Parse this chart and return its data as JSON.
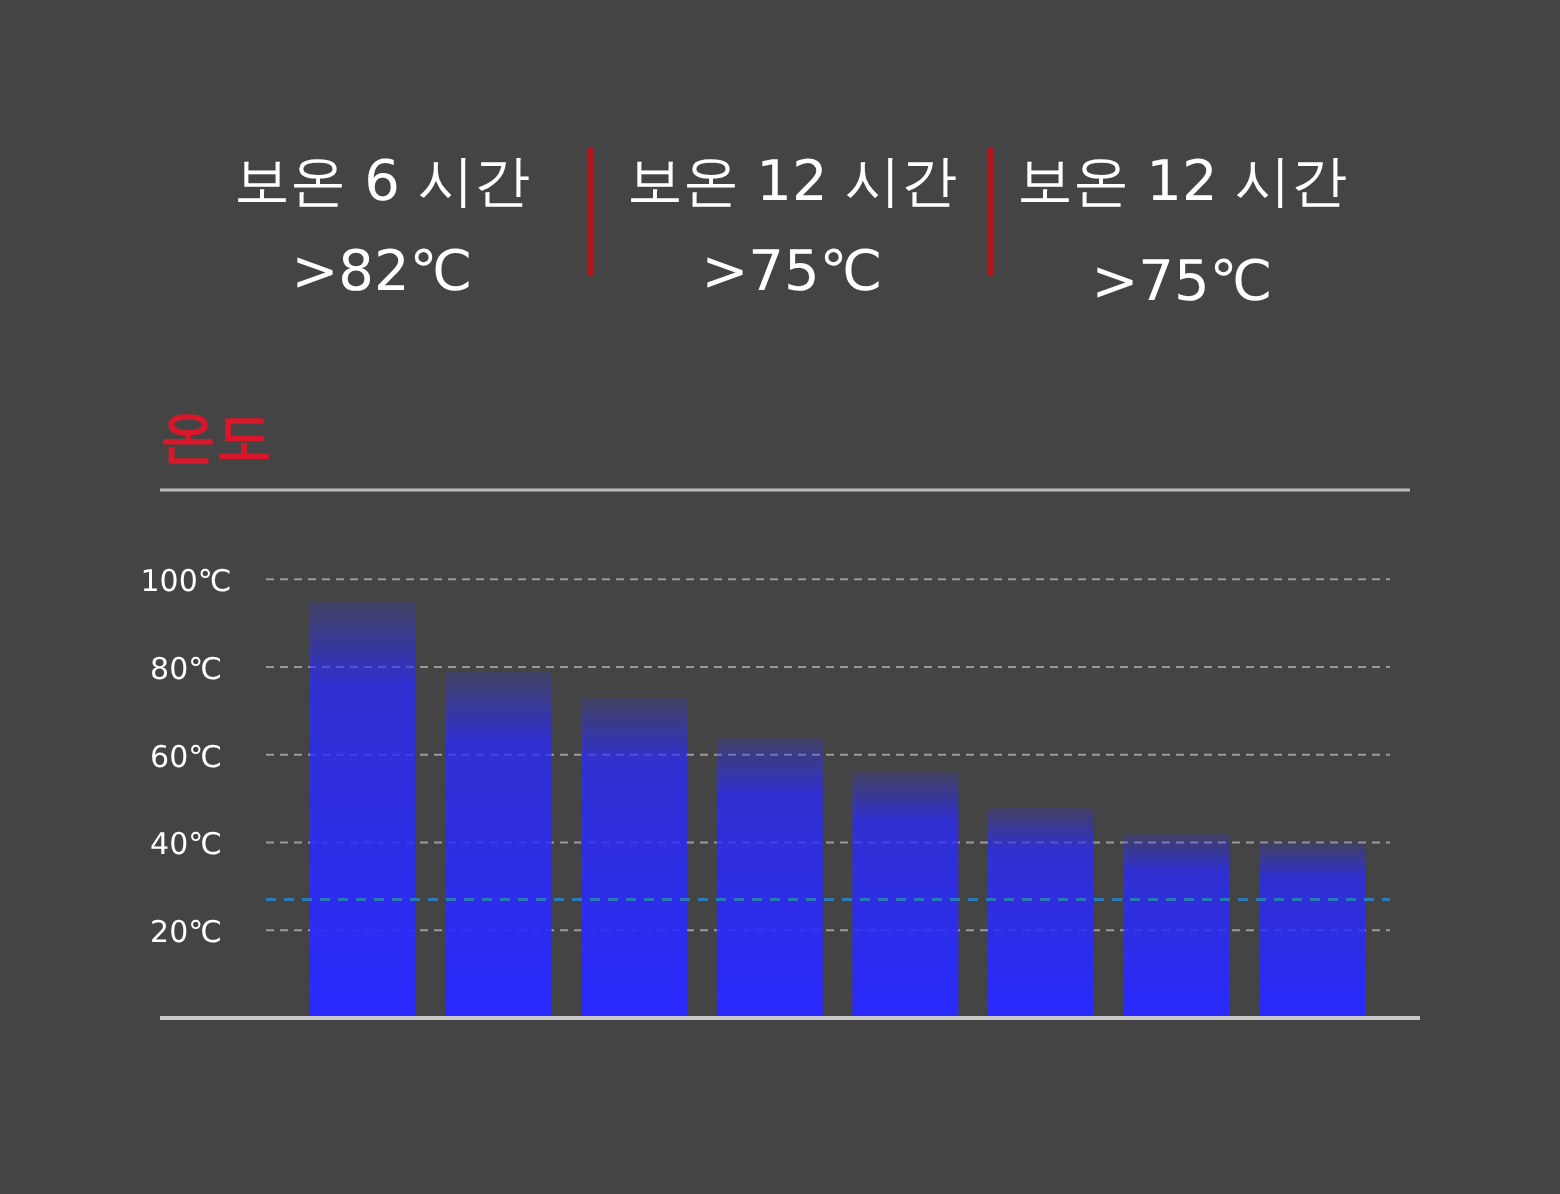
{
  "chart_data": {
    "type": "bar",
    "title": "온도",
    "annotations": [
      "보온 6 시간",
      ">82℃",
      "보온 12 시간",
      ">75℃",
      "보온 12 시간",
      ">75℃"
    ],
    "categories": [
      null,
      null,
      null,
      null,
      null,
      null,
      null,
      null
    ],
    "series": [
      {
        "color": "#2a2aff",
        "values": [
          95,
          79,
          73,
          64,
          56,
          48,
          42,
          40
        ]
      }
    ],
    "ylim": [
      0,
      100
    ],
    "yticks": [
      {
        "value": 20,
        "label": "20℃"
      },
      {
        "value": 40,
        "label": "40℃"
      },
      {
        "value": 60,
        "label": "60℃"
      },
      {
        "value": 80,
        "label": "80℃"
      },
      {
        "value": 100,
        "label": "100℃"
      }
    ],
    "grid": "y",
    "ref_lines": [
      {
        "axis": "y",
        "value": 27,
        "color": "#2a7ab8",
        "line_style": "dashed"
      }
    ]
  }
}
